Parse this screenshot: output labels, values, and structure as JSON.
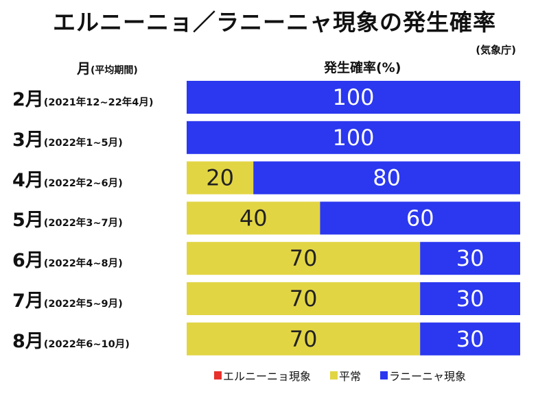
{
  "header": {
    "title": "エルニーニョ／ラニーニャ現象の発生確率",
    "source": "(気象庁)",
    "row_header_main": "月",
    "row_header_sub": "(平均期間)",
    "value_header": "発生確率(%)"
  },
  "chart_data": {
    "type": "bar",
    "orientation": "horizontal",
    "stacked": true,
    "title": "エルニーニョ／ラニーニャ現象の発生確率",
    "xlabel": "発生確率(%)",
    "ylabel": "月(平均期間)",
    "xlim": [
      0,
      100
    ],
    "grid": false,
    "legend": "bottom",
    "categories": [
      "2月",
      "3月",
      "4月",
      "5月",
      "6月",
      "7月",
      "8月"
    ],
    "periods": [
      "(2021年12~22年4月)",
      "(2022年1~5月)",
      "(2022年2~6月)",
      "(2022年3~7月)",
      "(2022年4~8月)",
      "(2022年5~9月)",
      "(2022年6~10月)"
    ],
    "series": [
      {
        "name": "エルニーニョ現象",
        "color": "#e8302c",
        "values": [
          0,
          0,
          0,
          0,
          0,
          0,
          0
        ]
      },
      {
        "name": "平常",
        "color": "#e2d544",
        "values": [
          0,
          0,
          20,
          40,
          70,
          70,
          70
        ]
      },
      {
        "name": "ラニーニャ現象",
        "color": "#2b38f0",
        "values": [
          100,
          100,
          80,
          60,
          30,
          30,
          30
        ]
      }
    ]
  }
}
